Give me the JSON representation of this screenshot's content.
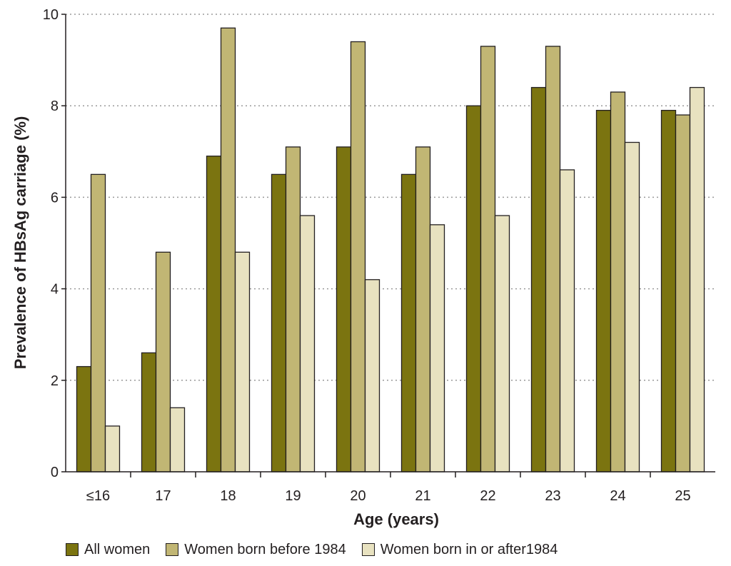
{
  "chart_data": {
    "type": "bar",
    "title": "",
    "xlabel": "Age (years)",
    "ylabel": "Prevalence of HBsAg carriage (%)",
    "ylim": [
      0,
      10
    ],
    "yticks": [
      "0",
      "2",
      "4",
      "6",
      "8",
      "10"
    ],
    "grid": "horizontal dotted",
    "legend_position": "bottom",
    "categories": [
      "≤16",
      "17",
      "18",
      "19",
      "20",
      "21",
      "22",
      "23",
      "24",
      "25"
    ],
    "series": [
      {
        "name": "All women",
        "color": "#7b7410",
        "values": [
          2.3,
          2.6,
          6.9,
          6.5,
          7.1,
          6.5,
          8.0,
          8.4,
          7.9,
          7.9
        ]
      },
      {
        "name": "Women born before 1984",
        "color": "#c1b674",
        "values": [
          6.5,
          4.8,
          9.7,
          7.1,
          9.4,
          7.1,
          9.3,
          9.3,
          8.3,
          7.8
        ]
      },
      {
        "name": "Women born in or after1984",
        "color": "#e8e2c0",
        "values": [
          1.0,
          1.4,
          4.8,
          5.6,
          4.2,
          5.4,
          5.6,
          6.6,
          7.2,
          8.4
        ]
      }
    ]
  }
}
